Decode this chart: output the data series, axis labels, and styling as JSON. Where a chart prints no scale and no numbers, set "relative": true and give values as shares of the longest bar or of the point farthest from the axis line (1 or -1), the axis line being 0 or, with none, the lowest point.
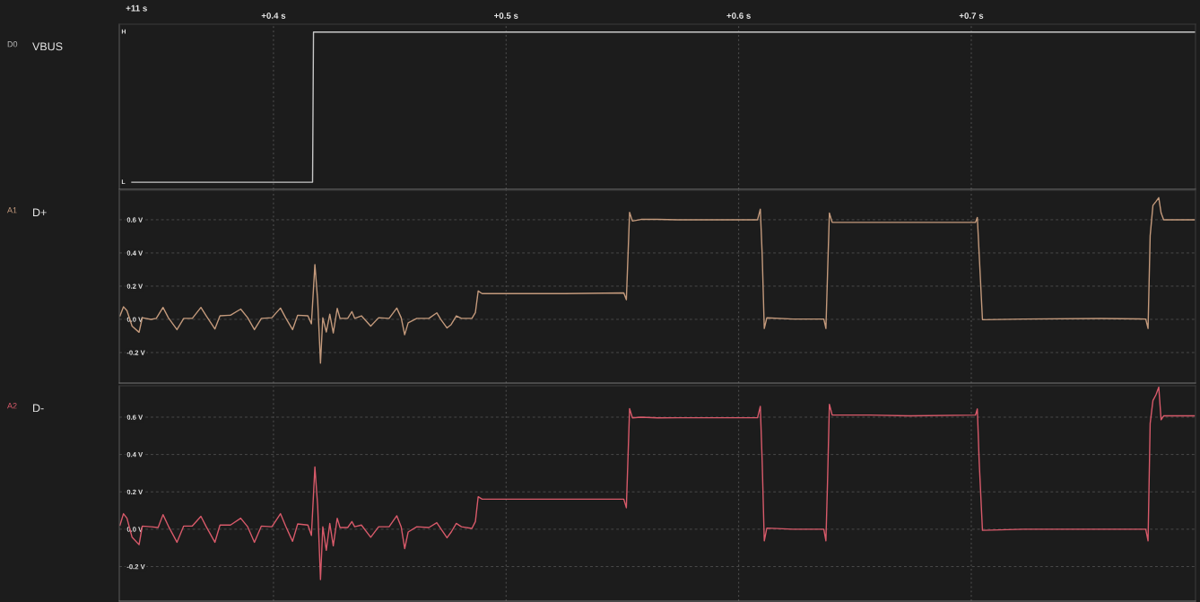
{
  "chart_data": [
    {
      "type": "line",
      "ylabel": "VBUS",
      "annotations": [
        "D0",
        "+11 s",
        "H",
        "L"
      ],
      "grid": "x",
      "relative": true,
      "xlim": [
        0.3337,
        0.7964
      ],
      "xticks": [
        {
          "value": 0.4,
          "label": "+0.4 s"
        },
        {
          "value": 0.5,
          "label": "+0.5 s"
        },
        {
          "value": 0.6,
          "label": "+0.6 s"
        },
        {
          "value": 0.7,
          "label": "+0.7 s"
        }
      ],
      "series": [
        {
          "color": "#c8c8c8",
          "x": [
            0.3391,
            0.4168,
            0.4172,
            0.7964
          ],
          "values": [
            0.045,
            0.045,
            1,
            1
          ]
        }
      ]
    },
    {
      "type": "line",
      "ylabel": "D+",
      "annotations": [
        "A1"
      ],
      "grid": true,
      "tick_labels": "y",
      "xlim": [
        0.3337,
        0.7964
      ],
      "ylim": [
        -0.384,
        0.778
      ],
      "xticks": [
        {
          "value": 0.4,
          "label": null
        },
        {
          "value": 0.5,
          "label": null
        },
        {
          "value": 0.6,
          "label": null
        },
        {
          "value": 0.7,
          "label": null
        }
      ],
      "yticks": [
        {
          "value": -0.2,
          "label": "-0.2 V"
        },
        {
          "value": 0.0,
          "label": "0.0 V"
        },
        {
          "value": 0.2,
          "label": "0.2 V"
        },
        {
          "value": 0.4,
          "label": "0.4 V"
        },
        {
          "value": 0.6,
          "label": "0.6 V"
        }
      ],
      "series": [
        {
          "color": "#c49a7c",
          "x": [
            0.334,
            0.3355,
            0.337,
            0.3392,
            0.3422,
            0.3436,
            0.3473,
            0.3496,
            0.3525,
            0.3548,
            0.3585,
            0.3614,
            0.3651,
            0.3688,
            0.3711,
            0.3748,
            0.377,
            0.3815,
            0.3859,
            0.3889,
            0.3918,
            0.3948,
            0.3993,
            0.403,
            0.4052,
            0.4082,
            0.4104,
            0.4148,
            0.4163,
            0.4178,
            0.419,
            0.4202,
            0.4212,
            0.4227,
            0.4242,
            0.4257,
            0.4274,
            0.4286,
            0.4319,
            0.4337,
            0.4349,
            0.4378,
            0.4418,
            0.4452,
            0.4497,
            0.453,
            0.4549,
            0.4564,
            0.4579,
            0.4616,
            0.4668,
            0.4702,
            0.4719,
            0.4746,
            0.4764,
            0.4786,
            0.4808,
            0.4853,
            0.4868,
            0.488,
            0.4897,
            0.5105,
            0.5253,
            0.5506,
            0.5517,
            0.5531,
            0.5543,
            0.558,
            0.5651,
            0.5738,
            0.5986,
            0.6081,
            0.6093,
            0.6101,
            0.611,
            0.6121,
            0.6233,
            0.6366,
            0.6375,
            0.6382,
            0.639,
            0.6402,
            0.6564,
            0.6728,
            0.7018,
            0.7026,
            0.7034,
            0.7048,
            0.7224,
            0.7555,
            0.775,
            0.776,
            0.7769,
            0.7781,
            0.7794,
            0.7806,
            0.7816,
            0.7827,
            0.7959
          ],
          "values": [
            0.021,
            0.076,
            0.052,
            -0.041,
            -0.078,
            0.01,
            0,
            0.006,
            0.072,
            0.01,
            -0.062,
            0.006,
            0.006,
            0.072,
            0.021,
            -0.058,
            0.021,
            0.025,
            0.062,
            0.01,
            -0.062,
            0.006,
            0.01,
            0.068,
            0.01,
            -0.062,
            0.025,
            0.021,
            -0.027,
            0.33,
            0.113,
            -0.264,
            0.01,
            -0.076,
            0.031,
            -0.082,
            0.066,
            0.006,
            0.006,
            0.047,
            0.006,
            0.021,
            -0.041,
            0.01,
            0.006,
            0.068,
            0.01,
            -0.093,
            -0.021,
            0.006,
            0.006,
            0.039,
            0,
            -0.052,
            -0.031,
            0.021,
            0.006,
            0.006,
            0.041,
            0.171,
            0.155,
            0.155,
            0.155,
            0.159,
            0.118,
            0.645,
            0.592,
            0.602,
            0.602,
            0.6,
            0.6,
            0.6,
            0.664,
            0.389,
            -0.055,
            0.009,
            0.002,
            0.002,
            -0.055,
            0.274,
            0.641,
            0.584,
            0.584,
            0.584,
            0.584,
            0.614,
            0.389,
            -0.002,
            0.002,
            0.005,
            0.002,
            -0.055,
            0.503,
            0.687,
            0.71,
            0.733,
            0.641,
            0.6,
            0.6
          ]
        }
      ]
    },
    {
      "type": "line",
      "ylabel": "D-",
      "annotations": [
        "A2"
      ],
      "grid": true,
      "tick_labels": "y",
      "xlim": [
        0.3337,
        0.7964
      ],
      "ylim": [
        -0.385,
        0.768
      ],
      "xticks": [
        {
          "value": 0.4,
          "label": null
        },
        {
          "value": 0.5,
          "label": null
        },
        {
          "value": 0.6,
          "label": null
        },
        {
          "value": 0.7,
          "label": null
        }
      ],
      "yticks": [
        {
          "value": -0.2,
          "label": "-0.2 V"
        },
        {
          "value": 0.0,
          "label": "0.0 V"
        },
        {
          "value": 0.2,
          "label": "0.2 V"
        },
        {
          "value": 0.4,
          "label": "0.4 V"
        },
        {
          "value": 0.6,
          "label": "0.6 V"
        }
      ],
      "series": [
        {
          "color": "#d85a6a",
          "x": [
            0.334,
            0.3355,
            0.337,
            0.3392,
            0.3422,
            0.3436,
            0.3473,
            0.3504,
            0.3525,
            0.3548,
            0.3585,
            0.3614,
            0.3651,
            0.3688,
            0.3711,
            0.3748,
            0.377,
            0.3815,
            0.3859,
            0.3889,
            0.3918,
            0.3948,
            0.3993,
            0.403,
            0.4052,
            0.4082,
            0.4104,
            0.4148,
            0.4163,
            0.4178,
            0.419,
            0.4202,
            0.4212,
            0.4227,
            0.4242,
            0.4257,
            0.4274,
            0.4286,
            0.4319,
            0.4337,
            0.4349,
            0.4378,
            0.4418,
            0.4452,
            0.4497,
            0.453,
            0.4549,
            0.4564,
            0.4579,
            0.4616,
            0.4668,
            0.4702,
            0.4719,
            0.4746,
            0.4764,
            0.4786,
            0.4808,
            0.4853,
            0.4868,
            0.488,
            0.4897,
            0.5105,
            0.5253,
            0.5506,
            0.5517,
            0.5531,
            0.5543,
            0.558,
            0.5651,
            0.5738,
            0.5986,
            0.6081,
            0.6093,
            0.6101,
            0.611,
            0.6121,
            0.6233,
            0.6366,
            0.6375,
            0.6382,
            0.639,
            0.6402,
            0.6564,
            0.6728,
            0.7018,
            0.7026,
            0.7034,
            0.7048,
            0.7224,
            0.7555,
            0.775,
            0.776,
            0.7769,
            0.7781,
            0.7794,
            0.7806,
            0.7816,
            0.7827,
            0.7959
          ],
          "values": [
            0.022,
            0.083,
            0.059,
            -0.043,
            -0.083,
            0.017,
            0.013,
            0.009,
            0.078,
            0.017,
            -0.07,
            0.017,
            0.017,
            0.069,
            0.013,
            -0.07,
            0.022,
            0.022,
            0.059,
            0.013,
            -0.07,
            0.017,
            0.013,
            0.083,
            0.017,
            -0.065,
            0.028,
            0.022,
            -0.033,
            0.333,
            0.124,
            -0.27,
            0.013,
            -0.113,
            0.031,
            -0.089,
            0.059,
            0.009,
            0.009,
            0.041,
            0.013,
            0.022,
            -0.043,
            0.013,
            0.013,
            0.072,
            0.013,
            -0.104,
            -0.015,
            0.013,
            0.009,
            0.035,
            0.004,
            -0.046,
            -0.015,
            0.031,
            0.013,
            0.004,
            0.041,
            0.174,
            0.161,
            0.161,
            0.161,
            0.161,
            0.115,
            0.646,
            0.596,
            0.6,
            0.596,
            0.597,
            0.597,
            0.597,
            0.658,
            0.36,
            -0.062,
            0.006,
            0,
            0,
            -0.062,
            0.257,
            0.669,
            0.611,
            0.611,
            0.607,
            0.611,
            0.644,
            0.36,
            -0.006,
            0,
            0,
            0,
            -0.062,
            0.566,
            0.689,
            0.72,
            0.761,
            0.586,
            0.607,
            0.607
          ]
        }
      ]
    }
  ]
}
